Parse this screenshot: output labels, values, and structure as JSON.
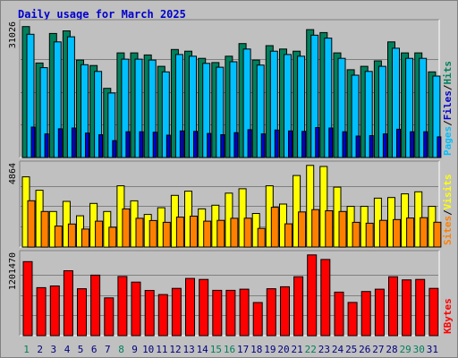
{
  "chart_data": [
    {
      "type": "bar",
      "panel": "pages-files-hits",
      "title": "Daily usage for March 2025",
      "ylabel_parts": [
        "Pages",
        "Files",
        "Hits"
      ],
      "ytick_label": "31026",
      "categories": [
        "1",
        "2",
        "3",
        "4",
        "5",
        "6",
        "7",
        "8",
        "9",
        "10",
        "11",
        "12",
        "13",
        "14",
        "15",
        "16",
        "17",
        "18",
        "19",
        "20",
        "21",
        "22",
        "23",
        "24",
        "25",
        "26",
        "27",
        "28",
        "29",
        "30",
        "31"
      ],
      "weekend_days": [
        "1",
        "8",
        "15",
        "16",
        "22",
        "29",
        "30"
      ],
      "ylim": [
        0,
        31026
      ],
      "series": [
        {
          "name": "Hits",
          "color": "#00805c",
          "values": [
            31026,
            22400,
            29400,
            30000,
            23100,
            21800,
            16400,
            24800,
            24800,
            24300,
            21600,
            25600,
            25200,
            23500,
            22500,
            24000,
            27000,
            23100,
            26500,
            25700,
            25200,
            30300,
            29600,
            24800,
            20800,
            21600,
            22900,
            27400,
            24800,
            24800,
            20300
          ]
        },
        {
          "name": "Files",
          "color": "#00c0ff",
          "values": [
            29200,
            21300,
            27400,
            28600,
            22000,
            20400,
            15300,
            23300,
            23300,
            23100,
            20300,
            24400,
            24000,
            22300,
            21400,
            22700,
            25700,
            21900,
            25200,
            24400,
            24000,
            29000,
            28300,
            23500,
            19500,
            20400,
            21600,
            25900,
            23500,
            23500,
            19300
          ]
        },
        {
          "name": "Pages",
          "color": "#0000cc",
          "values": [
            7200,
            5600,
            6800,
            7000,
            5800,
            5400,
            4000,
            6100,
            6100,
            6000,
            5300,
            6300,
            6200,
            5700,
            5400,
            5900,
            6600,
            5600,
            6500,
            6300,
            6200,
            7100,
            7000,
            6100,
            5100,
            5200,
            5600,
            6700,
            6100,
            6100,
            4900
          ]
        }
      ]
    },
    {
      "type": "bar",
      "panel": "visits-sites",
      "ylabel_parts": [
        "Sites",
        "Visits"
      ],
      "ytick_label": "4864",
      "ylim": [
        0,
        4864
      ],
      "series": [
        {
          "name": "Visits",
          "color": "#ffff00",
          "values": [
            4180,
            3380,
            2120,
            2720,
            1860,
            2600,
            2120,
            3650,
            2750,
            1940,
            2340,
            3080,
            3330,
            2270,
            2490,
            3210,
            3470,
            2000,
            3650,
            2560,
            4260,
            4864,
            4800,
            3570,
            2420,
            2420,
            2910,
            2950,
            3170,
            3290,
            2420
          ]
        },
        {
          "name": "Sites",
          "color": "#ff8000",
          "values": [
            2760,
            2120,
            1250,
            1370,
            1070,
            1540,
            1180,
            2270,
            1710,
            1580,
            1470,
            1780,
            1840,
            1540,
            1590,
            1710,
            1720,
            1110,
            2370,
            1380,
            2090,
            2230,
            2160,
            2120,
            1470,
            1420,
            1590,
            1640,
            1730,
            1750,
            1480
          ]
        }
      ]
    },
    {
      "type": "bar",
      "panel": "kbytes",
      "ylabel_parts": [
        "KBytes"
      ],
      "ytick_label": "1201470",
      "ylim": [
        0,
        1201470
      ],
      "series": [
        {
          "name": "KBytes",
          "color": "#ff0000",
          "values": [
            1101470,
            713100,
            738400,
            965600,
            698100,
            900500,
            561600,
            880300,
            796300,
            672600,
            610400,
            702800,
            850500,
            836400,
            674200,
            674200,
            690400,
            492000,
            698100,
            727500,
            876000,
            1201470,
            1133000,
            647300,
            493500,
            656100,
            690400,
            876000,
            829600,
            836400,
            702800
          ]
        }
      ]
    }
  ]
}
